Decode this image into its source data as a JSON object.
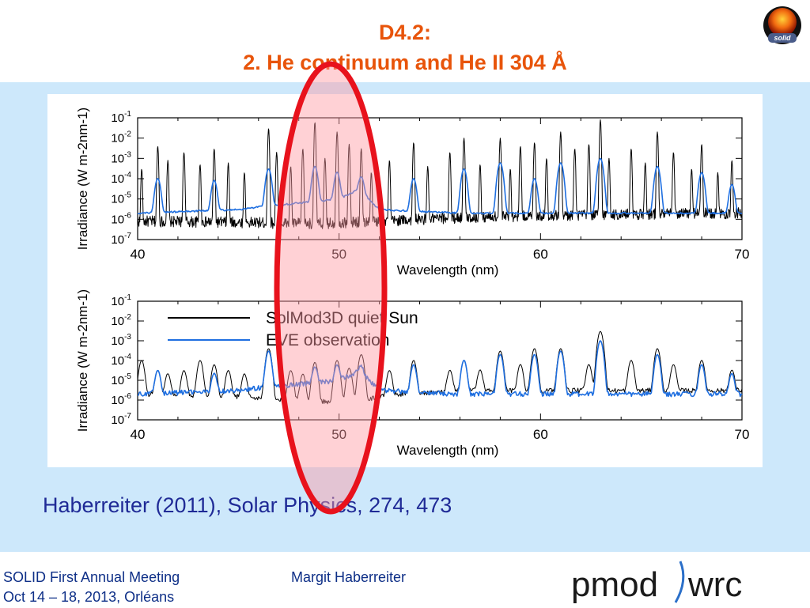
{
  "slide": {
    "title_line1": "D4.2:",
    "title_line2": "2. He continuum and He II 304 Å",
    "citation": "Haberreiter (2011), Solar Physics, 274, 473",
    "logo_text": "solid",
    "highlight": {
      "shape": "ellipse",
      "stroke": "#e8121c",
      "fill": "#ff9aa2"
    }
  },
  "footer": {
    "meeting": "SOLID First Annual Meeting",
    "dates": "Oct 14 – 18, 2013, Orléans",
    "author": "Margit Haberreiter",
    "logo_left": "pmod",
    "logo_right": "wrc"
  },
  "colors": {
    "title": "#e8540a",
    "panel_bg": "#cde8fb",
    "citation": "#1f2a96",
    "footer_text": "#0e2f87",
    "model": "#000000",
    "observation": "#1f6fe0"
  },
  "chart_data": [
    {
      "type": "line",
      "xlabel": "Wavelength (nm)",
      "ylabel": "Irradiance (W m-2nm-1)",
      "xlim": [
        40,
        70
      ],
      "ylim": [
        1e-07,
        0.1
      ],
      "yscale": "log",
      "x_ticks": [
        "40",
        "50",
        "60",
        "70"
      ],
      "y_ticks": [
        "10-1",
        "10-2",
        "10-3",
        "10-4",
        "10-5",
        "10-6",
        "10-7"
      ],
      "legend": null,
      "series": [
        {
          "name": "SolMod3D quiet Sun",
          "color": "#000000",
          "resolution": "high",
          "baseline": [
            [
              40,
              8e-07
            ],
            [
              45,
              7e-07
            ],
            [
              49,
              6e-07
            ],
            [
              52,
              8e-07
            ],
            [
              56,
              1.2e-06
            ],
            [
              60,
              1.5e-06
            ],
            [
              65,
              1.8e-06
            ],
            [
              70,
              2e-06
            ]
          ],
          "lines": [
            [
              40.2,
              0.0003
            ],
            [
              41.0,
              0.004
            ],
            [
              41.5,
              0.0008
            ],
            [
              42.3,
              0.002
            ],
            [
              43.1,
              0.0005
            ],
            [
              43.8,
              0.003
            ],
            [
              44.5,
              0.0006
            ],
            [
              45.3,
              0.0002
            ],
            [
              46.5,
              0.03
            ],
            [
              46.9,
              0.002
            ],
            [
              47.6,
              0.0004
            ],
            [
              48.2,
              0.003
            ],
            [
              48.8,
              0.06
            ],
            [
              49.3,
              0.001
            ],
            [
              49.9,
              0.02
            ],
            [
              50.5,
              0.005
            ],
            [
              51.1,
              0.003
            ],
            [
              51.6,
              0.0002
            ],
            [
              52.5,
              0.0008
            ],
            [
              53.7,
              0.006
            ],
            [
              54.4,
              0.0004
            ],
            [
              55.5,
              0.002
            ],
            [
              56.2,
              0.01
            ],
            [
              57.0,
              0.0005
            ],
            [
              58.0,
              0.01
            ],
            [
              58.5,
              0.0003
            ],
            [
              59.0,
              0.004
            ],
            [
              59.7,
              0.006
            ],
            [
              60.3,
              0.001
            ],
            [
              61.0,
              0.02
            ],
            [
              61.7,
              0.003
            ],
            [
              62.4,
              0.005
            ],
            [
              62.97,
              0.08
            ],
            [
              63.4,
              0.001
            ],
            [
              64.5,
              0.003
            ],
            [
              65.2,
              0.0006
            ],
            [
              65.8,
              0.02
            ],
            [
              66.6,
              0.002
            ],
            [
              67.5,
              0.0003
            ],
            [
              68.0,
              0.005
            ],
            [
              68.8,
              0.0002
            ],
            [
              69.5,
              0.0008
            ]
          ]
        },
        {
          "name": "EVE observation",
          "color": "#1f6fe0",
          "resolution": "medium",
          "baseline": [
            [
              40,
              2e-06
            ],
            [
              45,
              3e-06
            ],
            [
              46,
              4e-06
            ],
            [
              50,
              1e-05
            ],
            [
              51,
              3e-05
            ],
            [
              52,
              3e-06
            ],
            [
              56,
              2e-06
            ],
            [
              60,
              2e-06
            ],
            [
              65,
              2e-06
            ],
            [
              70,
              2e-06
            ]
          ],
          "lines": [
            [
              41.0,
              0.0001
            ],
            [
              43.8,
              8e-05
            ],
            [
              46.5,
              0.0003
            ],
            [
              48.8,
              0.0004
            ],
            [
              49.9,
              0.0002
            ],
            [
              51.1,
              0.0001
            ],
            [
              53.7,
              0.0001
            ],
            [
              56.2,
              0.0003
            ],
            [
              58.0,
              0.0006
            ],
            [
              59.7,
              0.0001
            ],
            [
              61.0,
              0.0006
            ],
            [
              62.97,
              0.001
            ],
            [
              65.8,
              0.0004
            ],
            [
              68.0,
              0.0002
            ],
            [
              69.5,
              5e-05
            ]
          ]
        }
      ]
    },
    {
      "type": "line",
      "xlabel": "Wavelength (nm)",
      "ylabel": "Irradiance (W m-2nm-1)",
      "xlim": [
        40,
        70
      ],
      "ylim": [
        1e-07,
        0.1
      ],
      "yscale": "log",
      "x_ticks": [
        "40",
        "50",
        "60",
        "70"
      ],
      "y_ticks": [
        "10-1",
        "10-2",
        "10-3",
        "10-4",
        "10-5",
        "10-6",
        "10-7"
      ],
      "legend": [
        "SolMod3D quiet Sun",
        "EVE observation"
      ],
      "series": [
        {
          "name": "SolMod3D quiet Sun",
          "color": "#000000",
          "resolution": "degraded",
          "baseline": [
            [
              40,
              2e-06
            ],
            [
              45,
              1.5e-06
            ],
            [
              47,
              1e-06
            ],
            [
              49,
              8e-07
            ],
            [
              51,
              1e-06
            ],
            [
              53,
              2e-06
            ],
            [
              56,
              3e-06
            ],
            [
              60,
              3e-06
            ],
            [
              65,
              3e-06
            ],
            [
              70,
              3e-06
            ]
          ],
          "lines": [
            [
              40.2,
              0.0001
            ],
            [
              41.0,
              3e-05
            ],
            [
              41.5,
              2e-05
            ],
            [
              42.3,
              3e-05
            ],
            [
              43.1,
              0.0001
            ],
            [
              43.8,
              6e-05
            ],
            [
              44.5,
              3e-05
            ],
            [
              45.3,
              2e-05
            ],
            [
              46.5,
              0.0004
            ],
            [
              47.6,
              3e-05
            ],
            [
              48.2,
              2e-05
            ],
            [
              48.8,
              8e-05
            ],
            [
              49.9,
              0.0001
            ],
            [
              50.5,
              4e-05
            ],
            [
              51.1,
              0.0002
            ],
            [
              52.5,
              3e-05
            ],
            [
              53.7,
              0.0001
            ],
            [
              55.5,
              3e-05
            ],
            [
              56.2,
              0.0001
            ],
            [
              57.0,
              3e-05
            ],
            [
              58.0,
              0.0003
            ],
            [
              59.0,
              6e-05
            ],
            [
              59.7,
              0.0004
            ],
            [
              61.0,
              0.0004
            ],
            [
              62.4,
              6e-05
            ],
            [
              62.97,
              0.003
            ],
            [
              64.5,
              0.0001
            ],
            [
              65.8,
              0.0004
            ],
            [
              66.6,
              6e-05
            ],
            [
              68.0,
              0.0001
            ],
            [
              69.5,
              3e-05
            ]
          ]
        },
        {
          "name": "EVE observation",
          "color": "#1f6fe0",
          "resolution": "degraded",
          "baseline": [
            [
              40,
              2e-06
            ],
            [
              45,
              3e-06
            ],
            [
              46,
              4e-06
            ],
            [
              50,
              1e-05
            ],
            [
              51,
              3e-05
            ],
            [
              52,
              3e-06
            ],
            [
              56,
              2e-06
            ],
            [
              60,
              2e-06
            ],
            [
              65,
              2e-06
            ],
            [
              70,
              2e-06
            ]
          ],
          "lines": [
            [
              41.0,
              3e-05
            ],
            [
              43.8,
              2e-05
            ],
            [
              46.5,
              0.0003
            ],
            [
              48.8,
              4e-05
            ],
            [
              49.9,
              5e-05
            ],
            [
              51.1,
              3e-05
            ],
            [
              53.7,
              6e-05
            ],
            [
              56.2,
              0.0001
            ],
            [
              58.0,
              0.0002
            ],
            [
              59.7,
              0.0002
            ],
            [
              61.0,
              0.0003
            ],
            [
              62.97,
              0.001
            ],
            [
              65.8,
              0.0002
            ],
            [
              68.0,
              6e-05
            ],
            [
              69.5,
              2e-05
            ]
          ]
        }
      ]
    }
  ]
}
